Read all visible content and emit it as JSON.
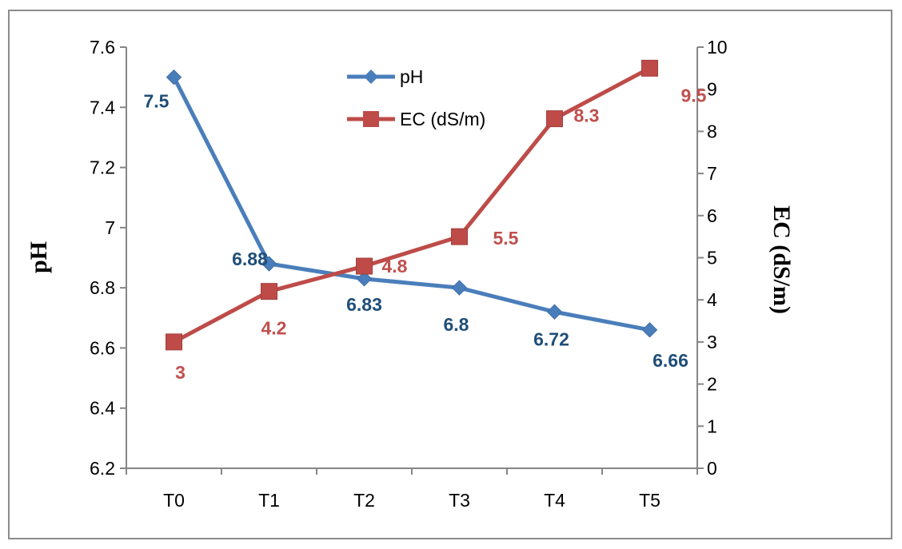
{
  "chart_data": {
    "type": "line",
    "categories": [
      "T0",
      "T1",
      "T2",
      "T3",
      "T4",
      "T5"
    ],
    "series": [
      {
        "name": "pH",
        "axis": "left",
        "color": "#4a7ebb",
        "label_color": "#1f4e79",
        "marker": "diamond",
        "values": [
          7.5,
          6.88,
          6.83,
          6.8,
          6.72,
          6.66
        ],
        "labels": [
          "7.5",
          "6.88",
          "6.83",
          "6.8",
          "6.72",
          "6.66"
        ]
      },
      {
        "name": "EC (dS/m)",
        "axis": "right",
        "color": "#be4b48",
        "label_color": "#c0504d",
        "marker": "square",
        "values": [
          3,
          4.2,
          4.8,
          5.5,
          8.3,
          9.5
        ],
        "labels": [
          "3",
          "4.2",
          "4.8",
          "5.5",
          "8.3",
          "9.5"
        ]
      }
    ],
    "ylabel_left": "pH",
    "ylabel_right": "EC (dS/m)",
    "ylim_left": [
      6.2,
      7.6
    ],
    "ylim_right": [
      0,
      10
    ],
    "yticks_left": [
      "6.2",
      "6.4",
      "6.6",
      "6.8",
      "7",
      "7.2",
      "7.4",
      "7.6"
    ],
    "yticks_right": [
      "0",
      "1",
      "2",
      "3",
      "4",
      "5",
      "6",
      "7",
      "8",
      "9",
      "10"
    ],
    "grid": false,
    "legend_position": "top-center"
  }
}
